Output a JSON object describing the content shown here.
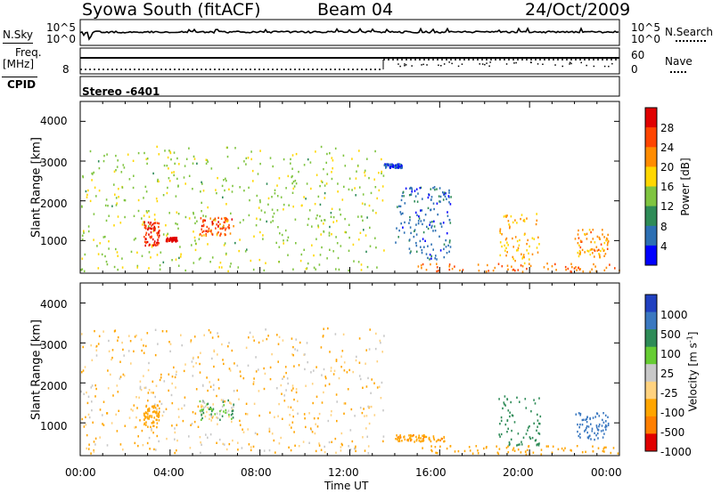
{
  "header": {
    "title": "Syowa South (fitACF)",
    "beam": "Beam 04",
    "date": "24/Oct/2009"
  },
  "panels": {
    "nsky_label": "N.Sky",
    "nsearch_label": "N.Search",
    "nsky_ticks": [
      "10^5",
      "10^0"
    ],
    "nsearch_ticks": [
      "10^5",
      "10^0"
    ],
    "freq_label_top": "Freq.",
    "freq_label_unit": "[MHz]",
    "freq_tick": "8",
    "nave_label": "Nave",
    "nave_ticks": [
      "60",
      "0"
    ],
    "cpid_label": "CPID",
    "cpid_value": "Stereo  -6401"
  },
  "axes": {
    "ylabel": "Slant Range [km]",
    "xlabel": "Time UT",
    "y_ticks": [
      "4000",
      "3000",
      "2000",
      "1000"
    ],
    "x_ticks": [
      "00:00",
      "04:00",
      "08:00",
      "12:00",
      "16:00",
      "20:00",
      "00:00"
    ]
  },
  "colorbars": {
    "power": {
      "label": "Power [dB]",
      "ticks": [
        "28",
        "24",
        "20",
        "16",
        "12",
        "8",
        "4"
      ],
      "colors": [
        "#0000ff",
        "#2c6fb3",
        "#2e8b57",
        "#7fc440",
        "#ffd700",
        "#ff8c00",
        "#ff4500",
        "#e00000"
      ]
    },
    "velocity": {
      "label": "Velocity [m s",
      "label_sup": "-1",
      "label_end": "]",
      "ticks": [
        "1000",
        "500",
        "100",
        "25",
        "-25",
        "-100",
        "-500",
        "-1000"
      ],
      "colors": [
        "#2040c0",
        "#3a78c0",
        "#2e8b57",
        "#66cc33",
        "#c8c8c8",
        "#ffd27f",
        "#ffa500",
        "#ff7f00",
        "#e00000"
      ]
    }
  },
  "chart_data": [
    {
      "type": "heatmap",
      "title": "Power [dB]",
      "xlabel": "Time UT",
      "ylabel": "Slant Range [km]",
      "xlim": [
        0,
        24
      ],
      "ylim": [
        180,
        4500
      ],
      "clim": [
        0,
        30
      ],
      "patches": [
        {
          "t": [
            0.0,
            13.5
          ],
          "r": [
            250,
            3400
          ],
          "v": 14
        },
        {
          "t": [
            2.8,
            3.5
          ],
          "r": [
            900,
            1500
          ],
          "v": 26
        },
        {
          "t": [
            3.8,
            4.3
          ],
          "r": [
            1000,
            1100
          ],
          "v": 29
        },
        {
          "t": [
            5.3,
            6.8
          ],
          "r": [
            1150,
            1600
          ],
          "v": 24
        },
        {
          "t": [
            13.5,
            14.3
          ],
          "r": [
            2850,
            2950
          ],
          "v": 4
        },
        {
          "t": [
            14.0,
            16.5
          ],
          "r": [
            550,
            2400
          ],
          "v": 6
        },
        {
          "t": [
            15.0,
            24.0
          ],
          "r": [
            230,
            450
          ],
          "v": 22
        },
        {
          "t": [
            18.6,
            20.5
          ],
          "r": [
            450,
            1700
          ],
          "v": 18
        },
        {
          "t": [
            22.0,
            23.5
          ],
          "r": [
            600,
            1300
          ],
          "v": 20
        }
      ]
    },
    {
      "type": "heatmap",
      "title": "Velocity [m s-1]",
      "xlabel": "Time UT",
      "ylabel": "Slant Range [km]",
      "xlim": [
        0,
        24
      ],
      "ylim": [
        180,
        4500
      ],
      "clim": [
        -1000,
        1000
      ],
      "patches": [
        {
          "t": [
            0.0,
            13.5
          ],
          "r": [
            250,
            3400
          ],
          "v": -100
        },
        {
          "t": [
            2.8,
            3.5
          ],
          "r": [
            900,
            1500
          ],
          "v": -300
        },
        {
          "t": [
            5.3,
            6.8
          ],
          "r": [
            1100,
            1600
          ],
          "v": 50
        },
        {
          "t": [
            14.0,
            16.2
          ],
          "r": [
            550,
            720
          ],
          "v": -400
        },
        {
          "t": [
            15.0,
            24.0
          ],
          "r": [
            230,
            450
          ],
          "v": -300
        },
        {
          "t": [
            18.6,
            20.5
          ],
          "r": [
            450,
            1700
          ],
          "v": 300
        },
        {
          "t": [
            22.0,
            23.5
          ],
          "r": [
            600,
            1300
          ],
          "v": 700
        }
      ]
    }
  ]
}
